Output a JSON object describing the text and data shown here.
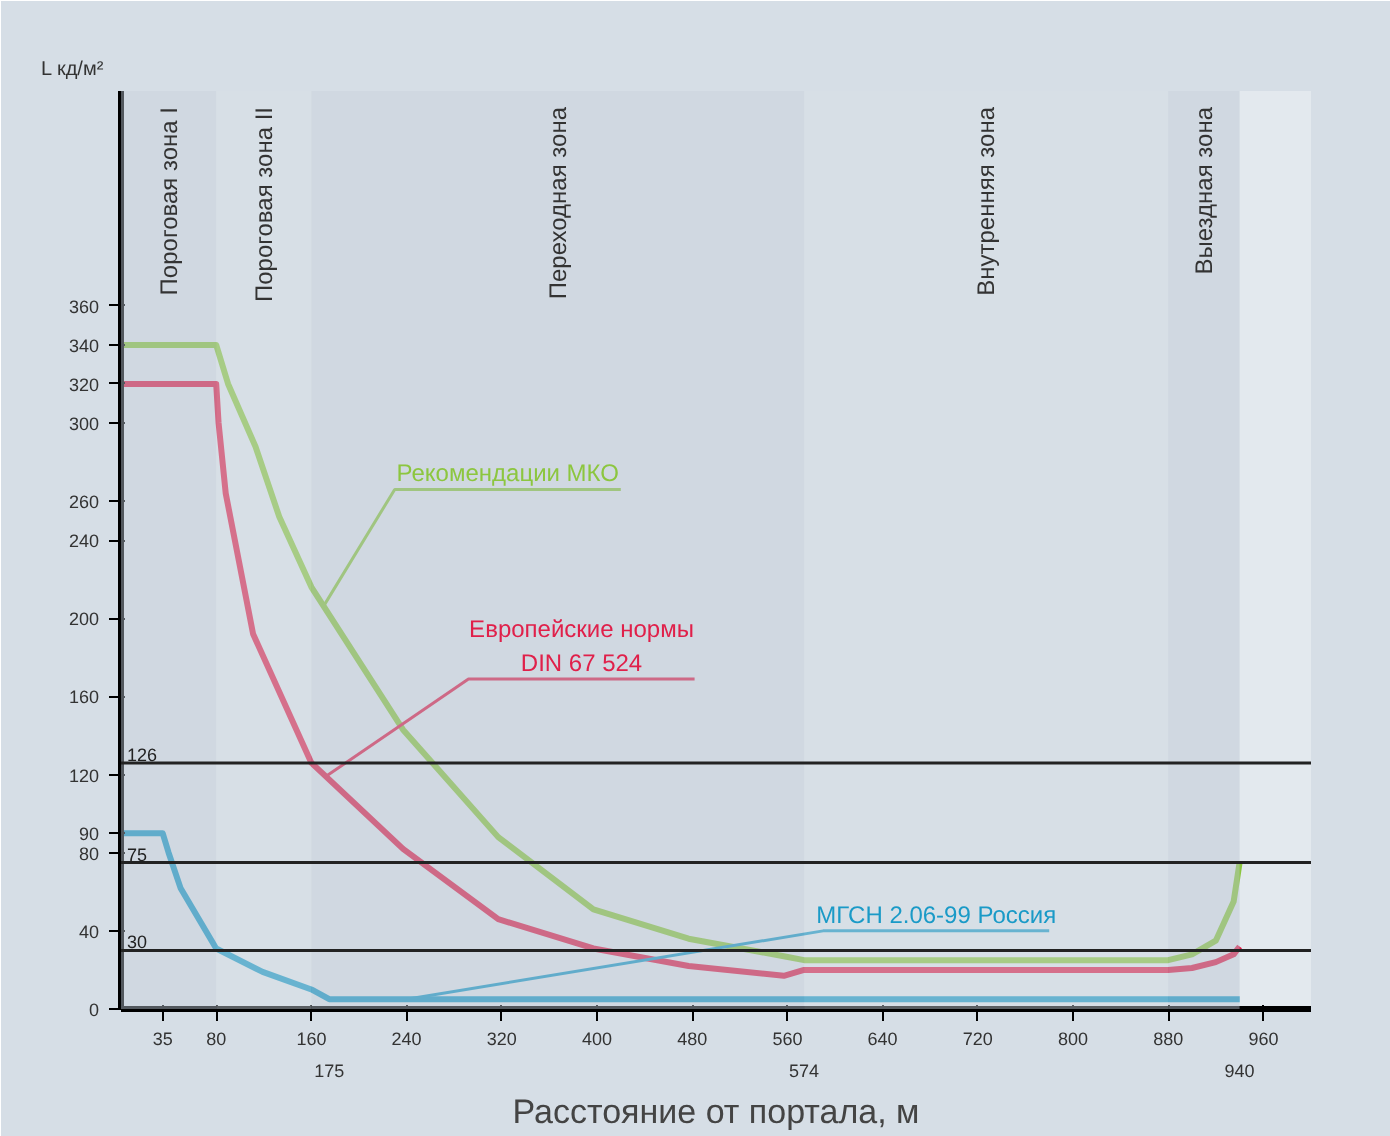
{
  "chart_data": {
    "type": "line",
    "xlabel": "Расстояние от портала, м",
    "ylabel": "L кд/м²",
    "xlim": [
      0,
      1000
    ],
    "xticks": [
      35,
      80,
      160,
      240,
      320,
      400,
      480,
      560,
      640,
      720,
      800,
      880,
      960
    ],
    "x2lim": [
      0,
      1000
    ],
    "x2ticks": [
      175,
      574,
      940
    ],
    "ylim": [
      0,
      470
    ],
    "yticks": [
      0,
      40,
      80,
      90,
      120,
      160,
      200,
      240,
      260,
      300,
      320,
      340,
      360
    ],
    "grid": false,
    "marker": "none",
    "line_style": "solid",
    "series": [
      {
        "color": "#8cc63f",
        "x": [
          0,
          80,
          90,
          113,
          133,
          160,
          237,
          317,
          397,
          477,
          557,
          574,
          880,
          900,
          920,
          935,
          940
        ],
        "values": [
          340,
          340,
          320,
          288,
          252,
          216,
          143,
          88,
          51,
          36,
          27,
          25,
          25,
          28,
          35,
          55,
          75
        ]
      },
      {
        "color": "#e0204a",
        "x": [
          0,
          80,
          82,
          88,
          111,
          160,
          237,
          317,
          397,
          477,
          557,
          574,
          880,
          900,
          920,
          935,
          940
        ],
        "values": [
          320,
          320,
          300,
          264,
          192,
          126,
          82,
          46,
          31,
          22,
          17,
          20,
          20,
          21,
          24,
          28,
          32
        ]
      },
      {
        "color": "#1a9ac7",
        "x": [
          0,
          35,
          40,
          50,
          80,
          119,
          160,
          175,
          940
        ],
        "values": [
          90,
          90,
          80,
          62,
          31,
          19,
          10,
          5,
          5
        ]
      }
    ],
    "ref_lines": [
      {
        "axis": "y",
        "value": 126,
        "label": "126"
      },
      {
        "axis": "y",
        "value": 75,
        "label": "75"
      },
      {
        "axis": "y",
        "value": 30,
        "label": "30"
      }
    ],
    "bands": [
      {
        "axis": "x",
        "from": 0,
        "to": 80,
        "label": "Пороговая зона I",
        "color": "#b8c4d0"
      },
      {
        "axis": "x",
        "from": 80,
        "to": 160,
        "label": "Пороговая зона II",
        "color": "#c8d2dc"
      },
      {
        "axis": "x",
        "from": 160,
        "to": 574,
        "label": "Переходная зона",
        "color": "#b8c4d0"
      },
      {
        "axis": "x",
        "from": 574,
        "to": 880,
        "label": "Внутренняя зона",
        "color": "#c8d2dc"
      },
      {
        "axis": "x",
        "from": 880,
        "to": 940,
        "label": "Выездная зона",
        "color": "#b8c4d0"
      }
    ],
    "annotations": [
      {
        "text": "Рекомендации МКО",
        "x": 170,
        "y": 206
      },
      {
        "text": "Европейские нормы\nDIN 67 524",
        "x": 172,
        "y": 119
      },
      {
        "text": "МГСН 2.06-99 Россия",
        "x": 240,
        "y": 5
      }
    ]
  }
}
